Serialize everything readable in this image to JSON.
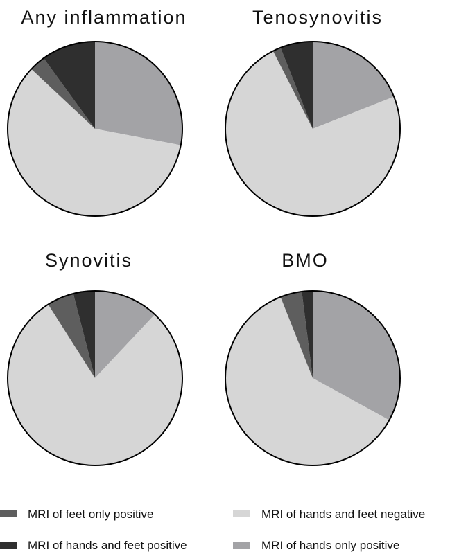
{
  "chart_data": [
    {
      "type": "pie",
      "title": "Any inflammation",
      "categories": [
        "MRI of hands only positive",
        "MRI of hands and feet negative",
        "MRI of feet only positive",
        "MRI of hands and feet positive"
      ],
      "values": [
        28,
        59,
        3,
        10
      ]
    },
    {
      "type": "pie",
      "title": "Tenosynovitis",
      "categories": [
        "MRI of hands only positive",
        "MRI of hands and feet negative",
        "MRI of feet only positive",
        "MRI of hands and feet positive"
      ],
      "values": [
        19,
        73.5,
        1.5,
        6
      ]
    },
    {
      "type": "pie",
      "title": "Synovitis",
      "categories": [
        "MRI of hands only positive",
        "MRI of hands and feet negative",
        "MRI of feet only positive",
        "MRI of hands and feet positive"
      ],
      "values": [
        12,
        79,
        5,
        4
      ]
    },
    {
      "type": "pie",
      "title": "BMO",
      "categories": [
        "MRI of hands only positive",
        "MRI of hands and feet negative",
        "MRI of feet only positive",
        "MRI of hands and feet positive"
      ],
      "values": [
        33,
        61,
        4,
        2
      ]
    }
  ],
  "legend": [
    {
      "label": "MRI of feet only positive",
      "color": "#5e5e5e"
    },
    {
      "label": "MRI of hands and feet negative",
      "color": "#d6d6d6"
    },
    {
      "label": "MRI of hands and feet positive",
      "color": "#2f2f2f"
    },
    {
      "label": "MRI of hands only positive",
      "color": "#a3a3a6"
    }
  ],
  "colors": {
    "MRI of hands only positive": "#a3a3a6",
    "MRI of hands and feet negative": "#d6d6d6",
    "MRI of feet only positive": "#5e5e5e",
    "MRI of hands and feet positive": "#2f2f2f",
    "outline": "#000000"
  }
}
